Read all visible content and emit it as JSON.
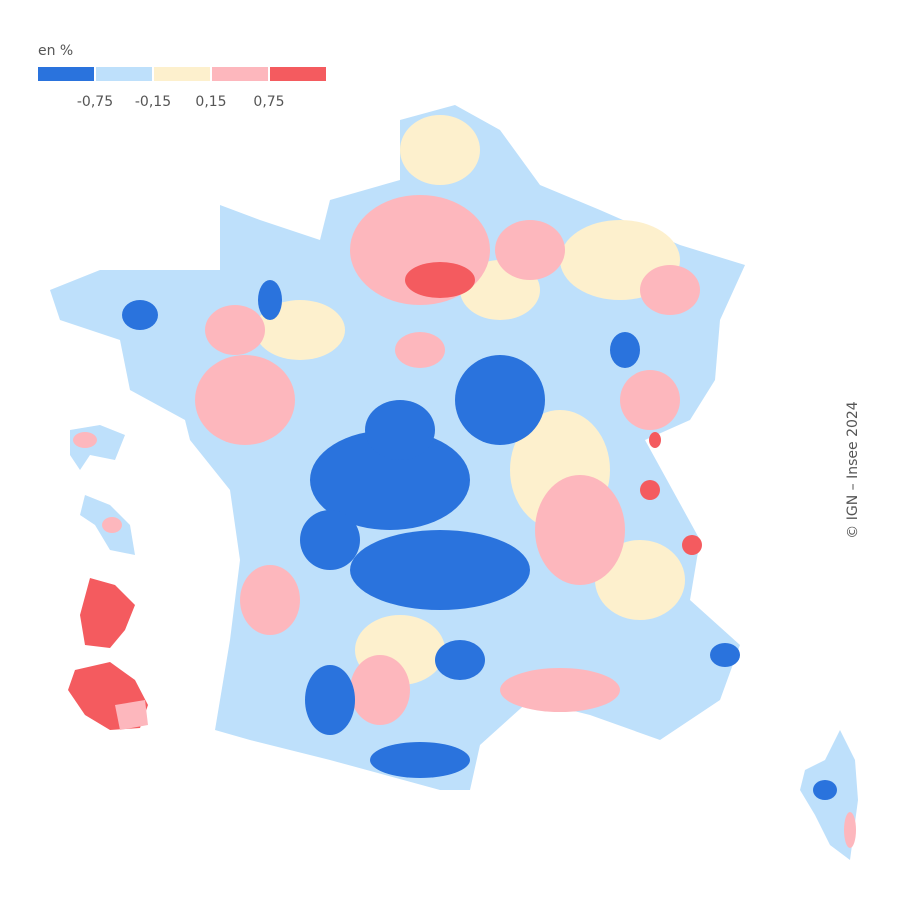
{
  "legend": {
    "title": "en %",
    "colors": [
      "#2a73dd",
      "#bee0fb",
      "#fdf0cd",
      "#fdb7bd",
      "#f45b5f"
    ],
    "labels": [
      "-0,75",
      "-0,15",
      "0,15",
      "0,75"
    ]
  },
  "credit": "© IGN – Insee 2024"
}
